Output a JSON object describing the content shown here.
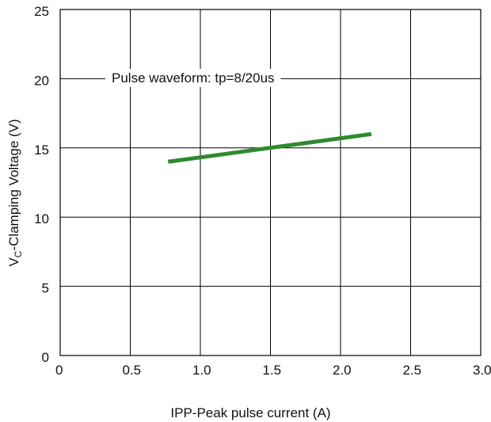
{
  "chart_data": {
    "type": "line",
    "title": "",
    "xlabel": "IPP-Peak pulse current (A)",
    "ylabel": {
      "prefix": "V",
      "subscript": "C",
      "suffix": "-Clamping Voltage (V)"
    },
    "xlim": [
      0,
      3.0
    ],
    "ylim": [
      0,
      25
    ],
    "x_ticks": [
      {
        "value": 0,
        "label": "0"
      },
      {
        "value": 0.5,
        "label": "0.5"
      },
      {
        "value": 1.0,
        "label": "1.0"
      },
      {
        "value": 1.5,
        "label": "1.5"
      },
      {
        "value": 2.0,
        "label": "2.0"
      },
      {
        "value": 2.5,
        "label": "2.5"
      },
      {
        "value": 3.0,
        "label": "3.0"
      }
    ],
    "y_ticks": [
      {
        "value": 0,
        "label": "0"
      },
      {
        "value": 5,
        "label": "5"
      },
      {
        "value": 10,
        "label": "10"
      },
      {
        "value": 15,
        "label": "15"
      },
      {
        "value": 20,
        "label": "20"
      },
      {
        "value": 25,
        "label": "25"
      }
    ],
    "grid": true,
    "annotation": "Pulse waveform: tp=8/20us",
    "series": [
      {
        "color": "#2e8b2e",
        "points": [
          {
            "x": 0.77,
            "y": 14.0
          },
          {
            "x": 2.22,
            "y": 16.0
          }
        ]
      }
    ]
  }
}
